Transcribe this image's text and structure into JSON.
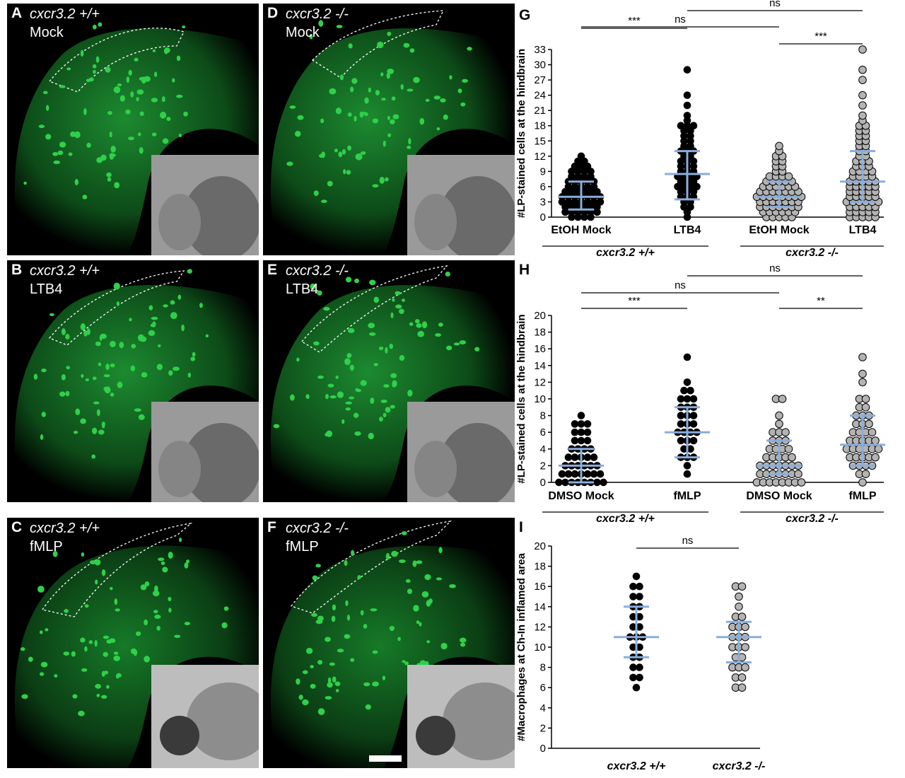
{
  "panels": [
    {
      "letter": "A",
      "genotype": "cxcr3.2 +/+",
      "treatment": "Mock"
    },
    {
      "letter": "B",
      "genotype": "cxcr3.2 +/+",
      "treatment": "LTB4"
    },
    {
      "letter": "C",
      "genotype": "cxcr3.2 +/+",
      "treatment": "fMLP"
    },
    {
      "letter": "D",
      "genotype": "cxcr3.2 -/-",
      "treatment": "Mock"
    },
    {
      "letter": "E",
      "genotype": "cxcr3.2 -/-",
      "treatment": "LTB4"
    },
    {
      "letter": "F",
      "genotype": "cxcr3.2 -/-",
      "treatment": "fMLP"
    }
  ],
  "colors": {
    "fluor": "#2fd04a",
    "median_bar": "#8aaedb",
    "wt_dot": "#000000",
    "ko_dot": "#b3b3b3"
  },
  "chart_data": [
    {
      "letter": "G",
      "type": "scatter",
      "ylabel": "#LP-stained cells at the hindbrain",
      "ylim": [
        0,
        33
      ],
      "yticks": [
        0,
        3,
        6,
        9,
        12,
        15,
        18,
        21,
        24,
        27,
        30,
        33
      ],
      "categories": [
        "EtOH Mock",
        "LTB4",
        "EtOH Mock",
        "LTB4"
      ],
      "groups": [
        {
          "label": "cxcr3.2 +/+",
          "span": [
            0,
            1
          ]
        },
        {
          "label": "cxcr3.2 -/-",
          "span": [
            2,
            3
          ]
        }
      ],
      "series": [
        {
          "values": [
            0,
            0,
            0,
            0,
            1,
            1,
            1,
            1,
            1,
            1,
            2,
            2,
            2,
            2,
            2,
            2,
            3,
            3,
            3,
            3,
            3,
            3,
            3,
            4,
            4,
            4,
            4,
            4,
            4,
            4,
            5,
            5,
            5,
            5,
            5,
            5,
            6,
            6,
            6,
            6,
            6,
            7,
            7,
            7,
            7,
            7,
            8,
            8,
            8,
            8,
            9,
            9,
            9,
            9,
            10,
            10,
            10,
            11,
            11,
            12
          ],
          "median": 4,
          "q1": 1.5,
          "q3": 7
        },
        {
          "values": [
            0,
            1,
            2,
            2,
            3,
            3,
            4,
            4,
            4,
            5,
            5,
            5,
            6,
            6,
            6,
            6,
            7,
            7,
            7,
            8,
            8,
            8,
            8,
            9,
            9,
            9,
            10,
            10,
            10,
            11,
            11,
            11,
            12,
            12,
            13,
            13,
            13,
            14,
            14,
            15,
            15,
            16,
            16,
            17,
            17,
            18,
            18,
            18,
            19,
            20,
            22,
            24,
            29
          ],
          "median": 8.5,
          "q1": 3.5,
          "q3": 13
        },
        {
          "values": [
            0,
            0,
            0,
            0,
            0,
            1,
            1,
            1,
            1,
            1,
            1,
            2,
            2,
            2,
            2,
            2,
            2,
            2,
            3,
            3,
            3,
            3,
            3,
            3,
            3,
            4,
            4,
            4,
            4,
            4,
            4,
            4,
            4,
            5,
            5,
            5,
            5,
            5,
            5,
            5,
            6,
            6,
            6,
            6,
            6,
            6,
            7,
            7,
            7,
            7,
            7,
            8,
            8,
            8,
            8,
            9,
            9,
            10,
            10,
            11,
            11,
            12,
            12,
            13,
            14
          ],
          "median": 4,
          "q1": 2,
          "q3": 7
        },
        {
          "values": [
            0,
            0,
            0,
            0,
            0,
            1,
            1,
            1,
            1,
            1,
            2,
            2,
            2,
            2,
            2,
            3,
            3,
            3,
            3,
            3,
            3,
            4,
            4,
            4,
            4,
            4,
            5,
            5,
            5,
            5,
            5,
            6,
            6,
            6,
            6,
            6,
            7,
            7,
            7,
            7,
            7,
            8,
            8,
            8,
            8,
            9,
            9,
            9,
            9,
            10,
            10,
            10,
            11,
            11,
            11,
            12,
            12,
            13,
            13,
            14,
            14,
            15,
            15,
            16,
            16,
            17,
            17,
            18,
            18,
            19,
            20,
            22,
            24,
            27,
            29,
            33
          ],
          "median": 7,
          "q1": 3,
          "q3": 13
        }
      ],
      "significance": [
        {
          "from": 0,
          "to": 1,
          "label": "***"
        },
        {
          "from": 2,
          "to": 3,
          "label": "***"
        },
        {
          "from": 0,
          "to": 2,
          "label": "ns"
        },
        {
          "from": 1,
          "to": 3,
          "label": "ns"
        }
      ]
    },
    {
      "letter": "H",
      "type": "scatter",
      "ylabel": "#LP-stained cells at the hindbrain",
      "ylim": [
        0,
        20
      ],
      "yticks": [
        0,
        2,
        4,
        6,
        8,
        10,
        12,
        14,
        16,
        18,
        20
      ],
      "categories": [
        "DMSO Mock",
        "fMLP",
        "DMSO Mock",
        "fMLP"
      ],
      "groups": [
        {
          "label": "cxcr3.2 +/+",
          "span": [
            0,
            1
          ]
        },
        {
          "label": "cxcr3.2 -/-",
          "span": [
            2,
            3
          ]
        }
      ],
      "series": [
        {
          "values": [
            0,
            0,
            0,
            0,
            0,
            0,
            0,
            0,
            1,
            1,
            1,
            1,
            1,
            1,
            1,
            2,
            2,
            2,
            2,
            2,
            2,
            3,
            3,
            3,
            3,
            3,
            4,
            4,
            4,
            4,
            5,
            5,
            5,
            6,
            6,
            6,
            7,
            7,
            7,
            8
          ],
          "median": 2,
          "q1": 0,
          "q3": 4
        },
        {
          "values": [
            1,
            2,
            3,
            3,
            3,
            4,
            4,
            5,
            5,
            5,
            6,
            6,
            6,
            6,
            7,
            7,
            7,
            8,
            8,
            8,
            9,
            9,
            9,
            10,
            10,
            10,
            11,
            11,
            12,
            15
          ],
          "median": 6,
          "q1": 3,
          "q3": 9
        },
        {
          "values": [
            0,
            0,
            0,
            0,
            0,
            0,
            0,
            0,
            1,
            1,
            1,
            1,
            1,
            1,
            1,
            2,
            2,
            2,
            2,
            2,
            2,
            2,
            3,
            3,
            3,
            3,
            3,
            4,
            4,
            4,
            4,
            5,
            5,
            5,
            6,
            6,
            6,
            7,
            8,
            10,
            10
          ],
          "median": 2,
          "q1": 1,
          "q3": 5
        },
        {
          "values": [
            0,
            1,
            1,
            2,
            2,
            2,
            2,
            3,
            3,
            3,
            3,
            3,
            4,
            4,
            4,
            4,
            4,
            4,
            5,
            5,
            5,
            5,
            5,
            6,
            6,
            6,
            6,
            7,
            7,
            7,
            8,
            8,
            8,
            9,
            9,
            10,
            10,
            12,
            13,
            15
          ],
          "median": 4.5,
          "q1": 2,
          "q3": 8
        }
      ],
      "significance": [
        {
          "from": 0,
          "to": 1,
          "label": "***"
        },
        {
          "from": 2,
          "to": 3,
          "label": "**"
        },
        {
          "from": 0,
          "to": 2,
          "label": "ns"
        },
        {
          "from": 1,
          "to": 3,
          "label": "ns"
        }
      ]
    },
    {
      "letter": "I",
      "type": "scatter",
      "ylabel": "#Macrophages at Ch-In inflamed area",
      "ylim": [
        0,
        20
      ],
      "yticks": [
        0,
        2,
        4,
        6,
        8,
        10,
        12,
        14,
        16,
        18,
        20
      ],
      "categories": [
        "cxcr3.2 +/+",
        "cxcr3.2 -/-"
      ],
      "groups": [],
      "series": [
        {
          "values": [
            6,
            7,
            7,
            8,
            8,
            9,
            9,
            10,
            10,
            11,
            11,
            11,
            12,
            12,
            13,
            13,
            14,
            14,
            15,
            15,
            16,
            16,
            17
          ],
          "median": 11,
          "q1": 9,
          "q3": 14
        },
        {
          "values": [
            6,
            6,
            7,
            7,
            8,
            8,
            8,
            9,
            9,
            10,
            10,
            10,
            11,
            11,
            11,
            12,
            12,
            12,
            13,
            13,
            14,
            15,
            16,
            16
          ],
          "median": 11,
          "q1": 8.5,
          "q3": 12.5
        }
      ],
      "significance": [
        {
          "from": 0,
          "to": 1,
          "label": "ns"
        }
      ]
    }
  ]
}
